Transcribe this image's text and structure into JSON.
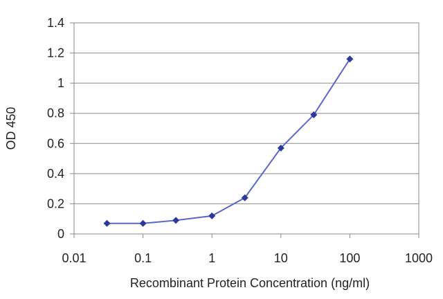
{
  "chart_data": {
    "type": "line",
    "title": "",
    "xlabel": "Recombinant Protein Concentration (ng/ml)",
    "ylabel": "OD 450",
    "x_scale": "log",
    "xlim": [
      0.01,
      1000
    ],
    "ylim": [
      0,
      1.4
    ],
    "x_tick_labels": [
      "0.01",
      "0.1",
      "1",
      "10",
      "100",
      "1000"
    ],
    "x_tick_values": [
      0.01,
      0.1,
      1,
      10,
      100,
      1000
    ],
    "y_tick_labels": [
      "0",
      "0.2",
      "0.4",
      "0.6",
      "0.8",
      "1",
      "1.2",
      "1.4"
    ],
    "y_tick_values": [
      0,
      0.2,
      0.4,
      0.6,
      0.8,
      1,
      1.2,
      1.4
    ],
    "grid": "horizontal",
    "legend": "none",
    "series": [
      {
        "marker": "diamond",
        "color": "#2b3a9a",
        "line_color": "#5a66c8",
        "points": [
          {
            "x": 0.03,
            "y": 0.07
          },
          {
            "x": 0.1,
            "y": 0.07
          },
          {
            "x": 0.3,
            "y": 0.09
          },
          {
            "x": 1,
            "y": 0.12
          },
          {
            "x": 3,
            "y": 0.24
          },
          {
            "x": 10,
            "y": 0.57
          },
          {
            "x": 30,
            "y": 0.79
          },
          {
            "x": 100,
            "y": 1.16
          }
        ]
      }
    ]
  }
}
